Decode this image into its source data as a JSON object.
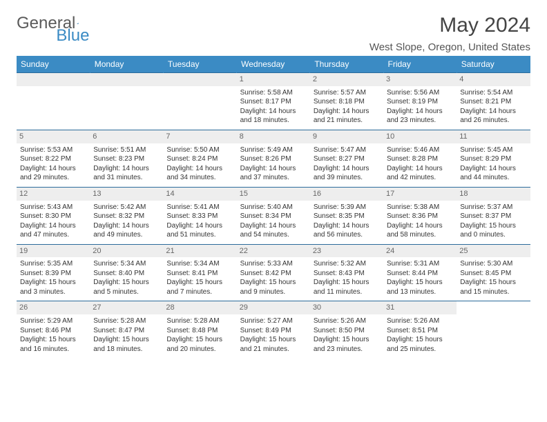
{
  "logo": {
    "word1": "General",
    "word2": "Blue"
  },
  "title": "May 2024",
  "location": "West Slope, Oregon, United States",
  "header_bg": "#3b8bc4",
  "daynum_bg": "#eeeeee",
  "border_color": "#2a6a9a",
  "day_headers": [
    "Sunday",
    "Monday",
    "Tuesday",
    "Wednesday",
    "Thursday",
    "Friday",
    "Saturday"
  ],
  "weeks": [
    [
      null,
      null,
      null,
      {
        "n": "1",
        "sr": "5:58 AM",
        "ss": "8:17 PM",
        "dl": "14 hours and 18 minutes."
      },
      {
        "n": "2",
        "sr": "5:57 AM",
        "ss": "8:18 PM",
        "dl": "14 hours and 21 minutes."
      },
      {
        "n": "3",
        "sr": "5:56 AM",
        "ss": "8:19 PM",
        "dl": "14 hours and 23 minutes."
      },
      {
        "n": "4",
        "sr": "5:54 AM",
        "ss": "8:21 PM",
        "dl": "14 hours and 26 minutes."
      }
    ],
    [
      {
        "n": "5",
        "sr": "5:53 AM",
        "ss": "8:22 PM",
        "dl": "14 hours and 29 minutes."
      },
      {
        "n": "6",
        "sr": "5:51 AM",
        "ss": "8:23 PM",
        "dl": "14 hours and 31 minutes."
      },
      {
        "n": "7",
        "sr": "5:50 AM",
        "ss": "8:24 PM",
        "dl": "14 hours and 34 minutes."
      },
      {
        "n": "8",
        "sr": "5:49 AM",
        "ss": "8:26 PM",
        "dl": "14 hours and 37 minutes."
      },
      {
        "n": "9",
        "sr": "5:47 AM",
        "ss": "8:27 PM",
        "dl": "14 hours and 39 minutes."
      },
      {
        "n": "10",
        "sr": "5:46 AM",
        "ss": "8:28 PM",
        "dl": "14 hours and 42 minutes."
      },
      {
        "n": "11",
        "sr": "5:45 AM",
        "ss": "8:29 PM",
        "dl": "14 hours and 44 minutes."
      }
    ],
    [
      {
        "n": "12",
        "sr": "5:43 AM",
        "ss": "8:30 PM",
        "dl": "14 hours and 47 minutes."
      },
      {
        "n": "13",
        "sr": "5:42 AM",
        "ss": "8:32 PM",
        "dl": "14 hours and 49 minutes."
      },
      {
        "n": "14",
        "sr": "5:41 AM",
        "ss": "8:33 PM",
        "dl": "14 hours and 51 minutes."
      },
      {
        "n": "15",
        "sr": "5:40 AM",
        "ss": "8:34 PM",
        "dl": "14 hours and 54 minutes."
      },
      {
        "n": "16",
        "sr": "5:39 AM",
        "ss": "8:35 PM",
        "dl": "14 hours and 56 minutes."
      },
      {
        "n": "17",
        "sr": "5:38 AM",
        "ss": "8:36 PM",
        "dl": "14 hours and 58 minutes."
      },
      {
        "n": "18",
        "sr": "5:37 AM",
        "ss": "8:37 PM",
        "dl": "15 hours and 0 minutes."
      }
    ],
    [
      {
        "n": "19",
        "sr": "5:35 AM",
        "ss": "8:39 PM",
        "dl": "15 hours and 3 minutes."
      },
      {
        "n": "20",
        "sr": "5:34 AM",
        "ss": "8:40 PM",
        "dl": "15 hours and 5 minutes."
      },
      {
        "n": "21",
        "sr": "5:34 AM",
        "ss": "8:41 PM",
        "dl": "15 hours and 7 minutes."
      },
      {
        "n": "22",
        "sr": "5:33 AM",
        "ss": "8:42 PM",
        "dl": "15 hours and 9 minutes."
      },
      {
        "n": "23",
        "sr": "5:32 AM",
        "ss": "8:43 PM",
        "dl": "15 hours and 11 minutes."
      },
      {
        "n": "24",
        "sr": "5:31 AM",
        "ss": "8:44 PM",
        "dl": "15 hours and 13 minutes."
      },
      {
        "n": "25",
        "sr": "5:30 AM",
        "ss": "8:45 PM",
        "dl": "15 hours and 15 minutes."
      }
    ],
    [
      {
        "n": "26",
        "sr": "5:29 AM",
        "ss": "8:46 PM",
        "dl": "15 hours and 16 minutes."
      },
      {
        "n": "27",
        "sr": "5:28 AM",
        "ss": "8:47 PM",
        "dl": "15 hours and 18 minutes."
      },
      {
        "n": "28",
        "sr": "5:28 AM",
        "ss": "8:48 PM",
        "dl": "15 hours and 20 minutes."
      },
      {
        "n": "29",
        "sr": "5:27 AM",
        "ss": "8:49 PM",
        "dl": "15 hours and 21 minutes."
      },
      {
        "n": "30",
        "sr": "5:26 AM",
        "ss": "8:50 PM",
        "dl": "15 hours and 23 minutes."
      },
      {
        "n": "31",
        "sr": "5:26 AM",
        "ss": "8:51 PM",
        "dl": "15 hours and 25 minutes."
      },
      null
    ]
  ],
  "labels": {
    "sunrise": "Sunrise: ",
    "sunset": "Sunset: ",
    "daylight": "Daylight: "
  }
}
